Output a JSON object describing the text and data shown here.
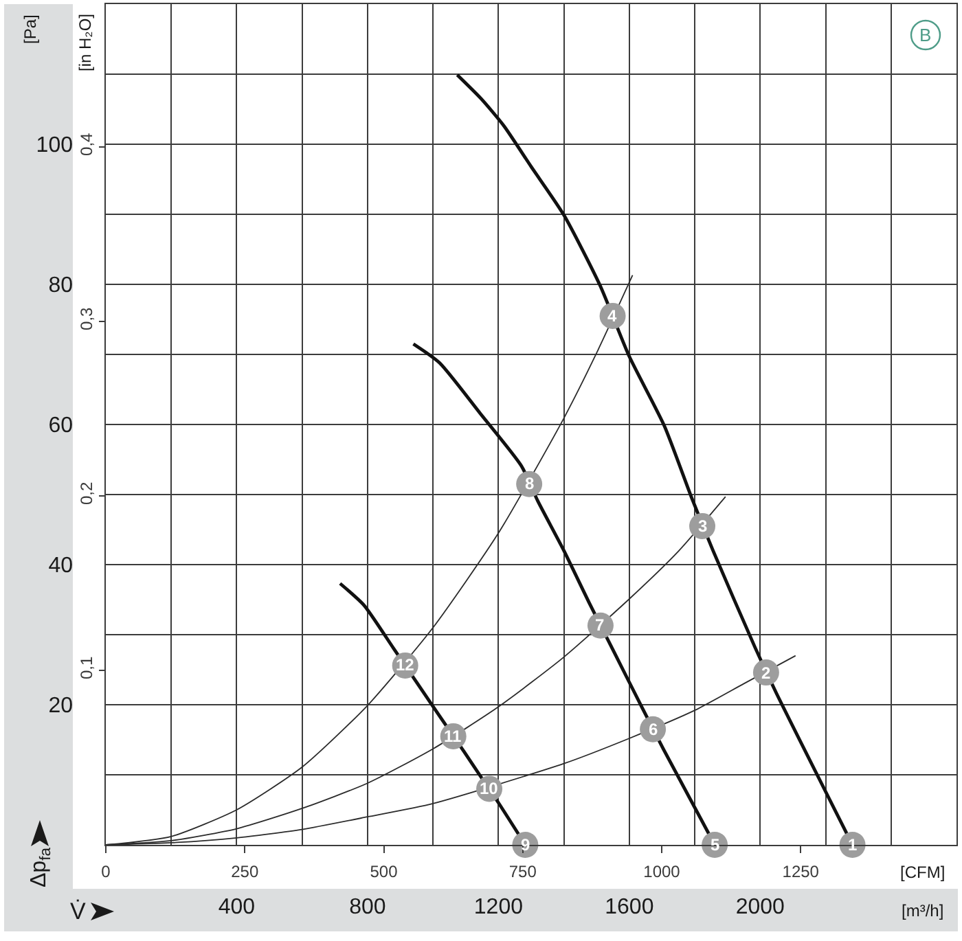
{
  "chart_data": {
    "type": "line",
    "xlabel": "[m³/h]",
    "x2label": "[CFM]",
    "ylabel": "[Pa]",
    "y2label": "[in H₂O]",
    "xlim": [
      0,
      2600
    ],
    "xticks": [
      {
        "value": 0,
        "label": null
      },
      {
        "value": 200,
        "label": null
      },
      400,
      {
        "value": 600,
        "label": null
      },
      800,
      {
        "value": 1000,
        "label": null
      },
      1200,
      {
        "value": 1400,
        "label": null
      },
      1600,
      {
        "value": 1800,
        "label": null
      },
      2000,
      {
        "value": 2200,
        "label": null
      },
      {
        "value": 2400,
        "label": null
      },
      {
        "value": 2600,
        "label": null
      }
    ],
    "x2lim": [
      0,
      1530.3
    ],
    "x2ticks": [
      0,
      250,
      500,
      750,
      1000,
      1250
    ],
    "ylim": [
      0,
      120
    ],
    "yticks": [
      {
        "value": 0,
        "label": null
      },
      {
        "value": 10,
        "label": null
      },
      20,
      {
        "value": 30,
        "label": null
      },
      40,
      {
        "value": 50,
        "label": null
      },
      60,
      {
        "value": 70,
        "label": null
      },
      80,
      {
        "value": 90,
        "label": null
      },
      100,
      {
        "value": 110,
        "label": null
      },
      {
        "value": 120,
        "label": null
      }
    ],
    "y2lim": [
      0,
      0.4818
    ],
    "y2ticks": [
      {
        "value": 0.1,
        "label": "0,1"
      },
      {
        "value": 0.2,
        "label": "0,2"
      },
      {
        "value": 0.3,
        "label": "0,3"
      },
      {
        "value": 0.4,
        "label": "0,4"
      }
    ],
    "grid": true,
    "series": [
      {
        "color": "#111111",
        "x": [
          1074,
          1147,
          1217,
          1300,
          1400,
          1511,
          1599,
          1707,
          1790,
          1855,
          1985,
          2050,
          2282
        ],
        "values": [
          109.9,
          106.5,
          102.6,
          96.8,
          89.9,
          79.8,
          69.8,
          59.8,
          49.6,
          42.1,
          28.1,
          21.6,
          0
        ]
      },
      {
        "color": "#111111",
        "x": [
          940,
          1020,
          1144,
          1270,
          1320,
          1400,
          1480,
          1545,
          1640,
          1705,
          1861
        ],
        "values": [
          71.5,
          68.8,
          61.6,
          54.1,
          49.1,
          42,
          34.3,
          28.3,
          19.5,
          13.6,
          0
        ]
      },
      {
        "color": "#111111",
        "x": [
          716,
          789,
          880,
          950,
          1030,
          1095,
          1145,
          1200,
          1282
        ],
        "values": [
          37.3,
          34.2,
          28.0,
          23.2,
          17.7,
          13.3,
          9.8,
          6.0,
          0
        ]
      },
      {
        "color": "#2b2b2b",
        "x": [
          0,
          200,
          400,
          600,
          800,
          1000,
          1200,
          1400,
          1500,
          1610
        ],
        "values": [
          0,
          1.2,
          5.0,
          11.1,
          19.9,
          31,
          44.5,
          60.9,
          70.2,
          81.3
        ]
      },
      {
        "color": "#2b2b2b",
        "x": [
          0,
          200,
          400,
          600,
          800,
          1000,
          1200,
          1400,
          1600,
          1750,
          1894
        ],
        "values": [
          0,
          0.6,
          2.3,
          5.2,
          8.8,
          13.7,
          19.7,
          26.8,
          35.1,
          41.9,
          49.7
        ]
      },
      {
        "color": "#2b2b2b",
        "x": [
          0,
          200,
          400,
          600,
          800,
          1000,
          1400,
          1600,
          1800,
          1950,
          2108
        ],
        "values": [
          0,
          0.3,
          1.0,
          2.2,
          4.0,
          5.9,
          11.6,
          15.2,
          19.2,
          23.0,
          27.0
        ]
      },
      {
        "type": "scatter",
        "color": "#9d9d9d",
        "marker": "circle",
        "x": [
          2282,
          2018,
          1823,
          1549,
          1861,
          1672,
          1512,
          1294,
          1282,
          1172,
          1062,
          915
        ],
        "values": [
          0,
          24.6,
          45.5,
          75.5,
          0,
          16.5,
          31.3,
          51.5,
          0,
          8.0,
          15.5,
          25.6
        ]
      }
    ],
    "annotations": [
      "V̇",
      "Δp$_{fa}$",
      "B",
      {
        "text": "1",
        "x": 2282,
        "y": 0
      },
      {
        "text": "2",
        "x": 2018,
        "y": 24.6
      },
      {
        "text": "3",
        "x": 1823,
        "y": 45.5
      },
      {
        "text": "4",
        "x": 1549,
        "y": 75.5
      },
      {
        "text": "5",
        "x": 1861,
        "y": 0
      },
      {
        "text": "6",
        "x": 1672,
        "y": 16.5
      },
      {
        "text": "7",
        "x": 1512,
        "y": 31.3
      },
      {
        "text": "8",
        "x": 1294,
        "y": 51.5
      },
      {
        "text": "9",
        "x": 1282,
        "y": 0
      },
      {
        "text": "10",
        "x": 1172,
        "y": 8.0
      },
      {
        "text": "11",
        "x": 1062,
        "y": 15.5
      },
      {
        "text": "12",
        "x": 915,
        "y": 25.6
      }
    ]
  }
}
